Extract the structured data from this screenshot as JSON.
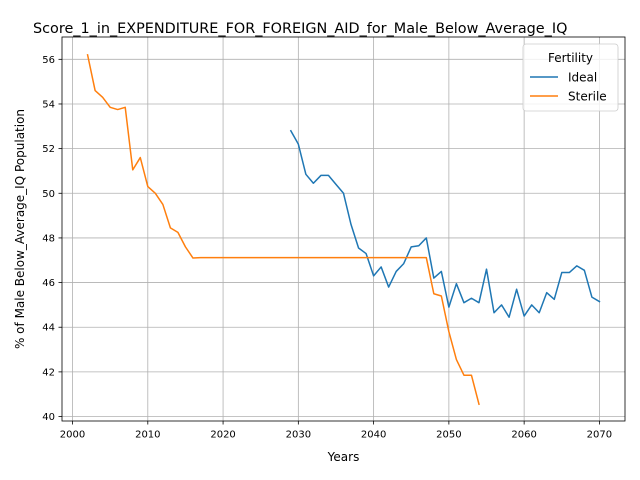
{
  "chart_data": {
    "type": "line",
    "title": "Score_1_in_EXPENDITURE_FOR_FOREIGN_AID_for_Male_Below_Average_IQ",
    "xlabel": "Years",
    "ylabel": "% of Male Below_Average_IQ Population",
    "xlim": [
      1998.6,
      2073.4
    ],
    "ylim": [
      39.8,
      57.0
    ],
    "x_ticks": [
      2000,
      2010,
      2020,
      2030,
      2040,
      2050,
      2060,
      2070
    ],
    "x_tick_labels": [
      "2000",
      "2010",
      "2020",
      "2030",
      "2040",
      "2050",
      "2060",
      "2070"
    ],
    "y_ticks": [
      40,
      42,
      44,
      46,
      48,
      50,
      52,
      54,
      56
    ],
    "y_tick_labels": [
      "40",
      "42",
      "44",
      "46",
      "48",
      "50",
      "52",
      "54",
      "56"
    ],
    "grid": true,
    "legend": {
      "title": "Fertility",
      "placement": "top-right"
    },
    "series": [
      {
        "name": "Ideal",
        "color": "#1f77b4",
        "x": [
          2029,
          2030,
          2031,
          2032,
          2033,
          2034,
          2035,
          2036,
          2037,
          2038,
          2039,
          2040,
          2041,
          2042,
          2043,
          2044,
          2045,
          2046,
          2047,
          2048,
          2049,
          2050,
          2051,
          2052,
          2053,
          2054,
          2055,
          2056,
          2057,
          2058,
          2059,
          2060,
          2061,
          2062,
          2063,
          2064,
          2065,
          2066,
          2067,
          2068,
          2069,
          2070
        ],
        "y": [
          52.8,
          52.2,
          50.85,
          50.45,
          50.8,
          50.8,
          50.4,
          50.0,
          48.6,
          47.55,
          47.3,
          46.3,
          46.7,
          45.8,
          46.5,
          46.85,
          47.6,
          47.65,
          48.0,
          46.2,
          46.5,
          44.9,
          45.95,
          45.1,
          45.3,
          45.1,
          46.6,
          44.65,
          45.0,
          44.45,
          45.7,
          44.5,
          45.0,
          44.65,
          45.55,
          45.25,
          46.45,
          46.45,
          46.75,
          46.55,
          45.35,
          45.15
        ]
      },
      {
        "name": "Sterile",
        "color": "#ff7f0e",
        "x": [
          2002,
          2003,
          2004,
          2005,
          2006,
          2007,
          2008,
          2009,
          2010,
          2011,
          2012,
          2013,
          2014,
          2015,
          2016,
          2017,
          2018,
          2019,
          2020,
          2021,
          2022,
          2023,
          2024,
          2025,
          2026,
          2027,
          2028,
          2029,
          2030,
          2031,
          2032,
          2033,
          2034,
          2035,
          2036,
          2037,
          2038,
          2039,
          2040,
          2041,
          2042,
          2043,
          2044,
          2045,
          2046,
          2047,
          2048,
          2049,
          2050,
          2051,
          2052,
          2053,
          2054
        ],
        "y": [
          56.2,
          54.6,
          54.3,
          53.85,
          53.75,
          53.85,
          51.05,
          51.6,
          50.3,
          50.0,
          49.5,
          48.45,
          48.25,
          47.6,
          47.1,
          47.12,
          47.12,
          47.12,
          47.12,
          47.12,
          47.12,
          47.12,
          47.12,
          47.12,
          47.12,
          47.12,
          47.12,
          47.12,
          47.12,
          47.12,
          47.12,
          47.12,
          47.12,
          47.12,
          47.12,
          47.12,
          47.12,
          47.12,
          47.12,
          47.12,
          47.12,
          47.12,
          47.12,
          47.12,
          47.12,
          47.12,
          45.5,
          45.4,
          43.8,
          42.55,
          41.85,
          41.85,
          40.55
        ]
      }
    ]
  }
}
